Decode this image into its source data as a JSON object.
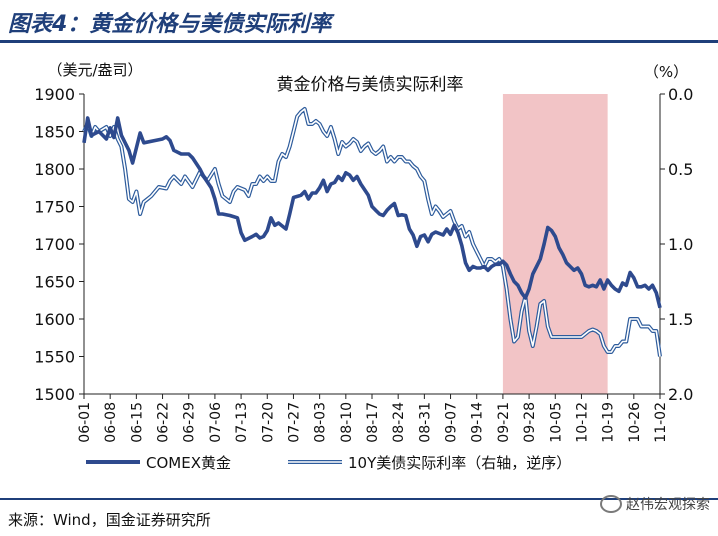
{
  "figure": {
    "label": "图表4：黄金价格与美债实际利率",
    "source": "来源：Wind，国金证券研究所",
    "watermark": "赵伟宏观探索",
    "watermark_icon": "wechat-icon"
  },
  "chart_data": {
    "type": "line",
    "title": "黄金价格与美债实际利率",
    "left_axis_unit": "（美元/盎司）",
    "right_axis_unit": "（%）",
    "ylim_left": [
      1500,
      1900
    ],
    "yticks_left": [
      1500,
      1550,
      1600,
      1650,
      1700,
      1750,
      1800,
      1850,
      1900
    ],
    "ylim_right": [
      0.0,
      2.0
    ],
    "right_axis_reversed": true,
    "yticks_right": [
      "0.0",
      "0.5",
      "1.0",
      "1.5",
      "2.0"
    ],
    "xtick_labels": [
      "06-01",
      "06-08",
      "06-15",
      "06-22",
      "06-29",
      "07-06",
      "07-13",
      "07-20",
      "07-27",
      "08-03",
      "08-10",
      "08-17",
      "08-24",
      "08-31",
      "09-07",
      "09-14",
      "09-21",
      "09-28",
      "10-05",
      "10-12",
      "10-19",
      "10-26",
      "11-02"
    ],
    "shaded_region": {
      "start": "09-21",
      "end": "10-19",
      "color": "#f2c4c6"
    },
    "grid": false,
    "legend_position": "bottom",
    "series": [
      {
        "name": "COMEX黄金",
        "axis": "left",
        "color": "#2e4a8e",
        "points": [
          [
            "06-01",
            1835
          ],
          [
            "06-02",
            1868
          ],
          [
            "06-03",
            1845
          ],
          [
            "06-05",
            1850
          ],
          [
            "06-07",
            1840
          ],
          [
            "06-08",
            1855
          ],
          [
            "06-09",
            1842
          ],
          [
            "06-10",
            1868
          ],
          [
            "06-11",
            1845
          ],
          [
            "06-13",
            1825
          ],
          [
            "06-14",
            1808
          ],
          [
            "06-16",
            1848
          ],
          [
            "06-17",
            1835
          ],
          [
            "06-20",
            1838
          ],
          [
            "06-22",
            1840
          ],
          [
            "06-23",
            1843
          ],
          [
            "06-24",
            1838
          ],
          [
            "06-25",
            1825
          ],
          [
            "06-27",
            1820
          ],
          [
            "06-29",
            1820
          ],
          [
            "06-30",
            1815
          ],
          [
            "07-02",
            1800
          ],
          [
            "07-03",
            1790
          ],
          [
            "07-05",
            1775
          ],
          [
            "07-06",
            1760
          ],
          [
            "07-07",
            1740
          ],
          [
            "07-08",
            1740
          ],
          [
            "07-10",
            1738
          ],
          [
            "07-12",
            1735
          ],
          [
            "07-13",
            1715
          ],
          [
            "07-14",
            1705
          ],
          [
            "07-16",
            1710
          ],
          [
            "07-17",
            1713
          ],
          [
            "07-18",
            1708
          ],
          [
            "07-19",
            1710
          ],
          [
            "07-20",
            1718
          ],
          [
            "07-21",
            1735
          ],
          [
            "07-22",
            1725
          ],
          [
            "07-23",
            1728
          ],
          [
            "07-25",
            1720
          ],
          [
            "07-26",
            1740
          ],
          [
            "07-27",
            1762
          ],
          [
            "07-29",
            1765
          ],
          [
            "07-30",
            1770
          ],
          [
            "07-31",
            1760
          ],
          [
            "08-01",
            1768
          ],
          [
            "08-02",
            1768
          ],
          [
            "08-03",
            1775
          ],
          [
            "08-04",
            1785
          ],
          [
            "08-05",
            1770
          ],
          [
            "08-06",
            1780
          ],
          [
            "08-07",
            1782
          ],
          [
            "08-08",
            1790
          ],
          [
            "08-09",
            1785
          ],
          [
            "08-10",
            1795
          ],
          [
            "08-11",
            1792
          ],
          [
            "08-12",
            1785
          ],
          [
            "08-13",
            1790
          ],
          [
            "08-14",
            1780
          ],
          [
            "08-16",
            1765
          ],
          [
            "08-17",
            1750
          ],
          [
            "08-18",
            1745
          ],
          [
            "08-19",
            1740
          ],
          [
            "08-20",
            1738
          ],
          [
            "08-21",
            1745
          ],
          [
            "08-22",
            1750
          ],
          [
            "08-23",
            1754
          ],
          [
            "08-24",
            1738
          ],
          [
            "08-25",
            1739
          ],
          [
            "08-26",
            1738
          ],
          [
            "08-27",
            1720
          ],
          [
            "08-28",
            1712
          ],
          [
            "08-29",
            1697
          ],
          [
            "08-30",
            1710
          ],
          [
            "08-31",
            1712
          ],
          [
            "09-01",
            1703
          ],
          [
            "09-02",
            1713
          ],
          [
            "09-03",
            1716
          ],
          [
            "09-05",
            1712
          ],
          [
            "09-06",
            1720
          ],
          [
            "09-07",
            1713
          ],
          [
            "09-08",
            1725
          ],
          [
            "09-09",
            1715
          ],
          [
            "09-10",
            1698
          ],
          [
            "09-11",
            1675
          ],
          [
            "09-12",
            1665
          ],
          [
            "09-13",
            1670
          ],
          [
            "09-14",
            1668
          ],
          [
            "09-15",
            1668
          ],
          [
            "09-16",
            1670
          ],
          [
            "09-17",
            1665
          ],
          [
            "09-18",
            1670
          ],
          [
            "09-19",
            1673
          ],
          [
            "09-20",
            1673
          ],
          [
            "09-21",
            1677
          ],
          [
            "09-22",
            1672
          ],
          [
            "09-23",
            1660
          ],
          [
            "09-24",
            1650
          ],
          [
            "09-25",
            1645
          ],
          [
            "09-26",
            1635
          ],
          [
            "09-27",
            1628
          ],
          [
            "09-28",
            1640
          ],
          [
            "09-29",
            1660
          ],
          [
            "09-30",
            1670
          ],
          [
            "10-01",
            1680
          ],
          [
            "10-02",
            1700
          ],
          [
            "10-03",
            1722
          ],
          [
            "10-04",
            1718
          ],
          [
            "10-05",
            1710
          ],
          [
            "10-06",
            1695
          ],
          [
            "10-07",
            1686
          ],
          [
            "10-08",
            1675
          ],
          [
            "10-09",
            1670
          ],
          [
            "10-10",
            1665
          ],
          [
            "10-11",
            1668
          ],
          [
            "10-12",
            1660
          ],
          [
            "10-13",
            1645
          ],
          [
            "10-14",
            1643
          ],
          [
            "10-15",
            1645
          ],
          [
            "10-16",
            1643
          ],
          [
            "10-17",
            1652
          ],
          [
            "10-18",
            1640
          ],
          [
            "10-19",
            1652
          ],
          [
            "10-20",
            1645
          ],
          [
            "10-21",
            1640
          ],
          [
            "10-22",
            1637
          ],
          [
            "10-23",
            1648
          ],
          [
            "10-24",
            1645
          ],
          [
            "10-25",
            1662
          ],
          [
            "10-26",
            1655
          ],
          [
            "10-27",
            1643
          ],
          [
            "10-28",
            1643
          ],
          [
            "10-29",
            1645
          ],
          [
            "10-30",
            1640
          ],
          [
            "10-31",
            1645
          ],
          [
            "11-01",
            1635
          ],
          [
            "11-02",
            1615
          ]
        ]
      },
      {
        "name": "10Y美债实际利率（右轴，逆序）",
        "axis": "right",
        "color": "#7aa7d8",
        "points": [
          [
            "06-01",
            0.25
          ],
          [
            "06-02",
            0.2
          ],
          [
            "06-03",
            0.28
          ],
          [
            "06-04",
            0.22
          ],
          [
            "06-05",
            0.25
          ],
          [
            "06-07",
            0.22
          ],
          [
            "06-08",
            0.28
          ],
          [
            "06-09",
            0.22
          ],
          [
            "06-10",
            0.3
          ],
          [
            "06-11",
            0.35
          ],
          [
            "06-12",
            0.5
          ],
          [
            "06-13",
            0.7
          ],
          [
            "06-14",
            0.72
          ],
          [
            "06-15",
            0.65
          ],
          [
            "06-16",
            0.8
          ],
          [
            "06-17",
            0.72
          ],
          [
            "06-18",
            0.7
          ],
          [
            "06-19",
            0.68
          ],
          [
            "06-21",
            0.62
          ],
          [
            "06-23",
            0.63
          ],
          [
            "06-24",
            0.58
          ],
          [
            "06-25",
            0.55
          ],
          [
            "06-27",
            0.6
          ],
          [
            "06-28",
            0.55
          ],
          [
            "06-30",
            0.62
          ],
          [
            "07-02",
            0.52
          ],
          [
            "07-03",
            0.55
          ],
          [
            "07-04",
            0.58
          ],
          [
            "07-06",
            0.5
          ],
          [
            "07-07",
            0.6
          ],
          [
            "07-08",
            0.68
          ],
          [
            "07-09",
            0.7
          ],
          [
            "07-10",
            0.72
          ],
          [
            "07-11",
            0.65
          ],
          [
            "07-12",
            0.62
          ],
          [
            "07-13",
            0.63
          ],
          [
            "07-14",
            0.64
          ],
          [
            "07-15",
            0.68
          ],
          [
            "07-16",
            0.6
          ],
          [
            "07-17",
            0.6
          ],
          [
            "07-18",
            0.55
          ],
          [
            "07-19",
            0.58
          ],
          [
            "07-20",
            0.55
          ],
          [
            "07-21",
            0.58
          ],
          [
            "07-22",
            0.58
          ],
          [
            "07-23",
            0.45
          ],
          [
            "07-24",
            0.4
          ],
          [
            "07-25",
            0.42
          ],
          [
            "07-26",
            0.35
          ],
          [
            "07-27",
            0.25
          ],
          [
            "07-28",
            0.15
          ],
          [
            "07-29",
            0.12
          ],
          [
            "07-30",
            0.1
          ],
          [
            "07-31",
            0.2
          ],
          [
            "08-01",
            0.2
          ],
          [
            "08-02",
            0.18
          ],
          [
            "08-03",
            0.2
          ],
          [
            "08-04",
            0.25
          ],
          [
            "08-05",
            0.28
          ],
          [
            "08-06",
            0.22
          ],
          [
            "08-07",
            0.3
          ],
          [
            "08-08",
            0.4
          ],
          [
            "08-09",
            0.32
          ],
          [
            "08-10",
            0.35
          ],
          [
            "08-11",
            0.33
          ],
          [
            "08-12",
            0.3
          ],
          [
            "08-13",
            0.32
          ],
          [
            "08-14",
            0.38
          ],
          [
            "08-15",
            0.35
          ],
          [
            "08-16",
            0.33
          ],
          [
            "08-17",
            0.38
          ],
          [
            "08-18",
            0.4
          ],
          [
            "08-19",
            0.38
          ],
          [
            "08-20",
            0.35
          ],
          [
            "08-21",
            0.45
          ],
          [
            "08-22",
            0.42
          ],
          [
            "08-23",
            0.45
          ],
          [
            "08-24",
            0.42
          ],
          [
            "08-25",
            0.42
          ],
          [
            "08-26",
            0.45
          ],
          [
            "08-27",
            0.45
          ],
          [
            "08-28",
            0.48
          ],
          [
            "08-29",
            0.5
          ],
          [
            "08-30",
            0.55
          ],
          [
            "08-31",
            0.58
          ],
          [
            "09-01",
            0.7
          ],
          [
            "09-02",
            0.8
          ],
          [
            "09-03",
            0.75
          ],
          [
            "09-04",
            0.78
          ],
          [
            "09-05",
            0.82
          ],
          [
            "09-06",
            0.8
          ],
          [
            "09-07",
            0.78
          ],
          [
            "09-08",
            0.85
          ],
          [
            "09-09",
            0.9
          ],
          [
            "09-10",
            0.88
          ],
          [
            "09-11",
            0.95
          ],
          [
            "09-12",
            0.92
          ],
          [
            "09-13",
            1.0
          ],
          [
            "09-14",
            1.05
          ],
          [
            "09-15",
            1.1
          ],
          [
            "09-16",
            1.15
          ],
          [
            "09-17",
            1.1
          ],
          [
            "09-18",
            1.1
          ],
          [
            "09-19",
            1.12
          ],
          [
            "09-20",
            1.1
          ],
          [
            "09-21",
            1.15
          ],
          [
            "09-22",
            1.3
          ],
          [
            "09-23",
            1.5
          ],
          [
            "09-24",
            1.65
          ],
          [
            "09-25",
            1.62
          ],
          [
            "09-26",
            1.45
          ],
          [
            "09-27",
            1.35
          ],
          [
            "09-28",
            1.58
          ],
          [
            "09-29",
            1.68
          ],
          [
            "09-30",
            1.55
          ],
          [
            "10-01",
            1.4
          ],
          [
            "10-02",
            1.38
          ],
          [
            "10-03",
            1.55
          ],
          [
            "10-04",
            1.62
          ],
          [
            "10-05",
            1.62
          ],
          [
            "10-06",
            1.62
          ],
          [
            "10-07",
            1.62
          ],
          [
            "10-08",
            1.62
          ],
          [
            "10-09",
            1.62
          ],
          [
            "10-10",
            1.62
          ],
          [
            "10-11",
            1.62
          ],
          [
            "10-12",
            1.62
          ],
          [
            "10-13",
            1.6
          ],
          [
            "10-14",
            1.58
          ],
          [
            "10-15",
            1.57
          ],
          [
            "10-16",
            1.58
          ],
          [
            "10-17",
            1.6
          ],
          [
            "10-18",
            1.68
          ],
          [
            "10-19",
            1.72
          ],
          [
            "10-20",
            1.72
          ],
          [
            "10-21",
            1.68
          ],
          [
            "10-22",
            1.68
          ],
          [
            "10-23",
            1.65
          ],
          [
            "10-24",
            1.65
          ],
          [
            "10-25",
            1.5
          ],
          [
            "10-26",
            1.5
          ],
          [
            "10-27",
            1.5
          ],
          [
            "10-28",
            1.55
          ],
          [
            "10-29",
            1.55
          ],
          [
            "10-30",
            1.55
          ],
          [
            "10-31",
            1.58
          ],
          [
            "11-01",
            1.58
          ],
          [
            "11-02",
            1.75
          ]
        ]
      }
    ]
  }
}
